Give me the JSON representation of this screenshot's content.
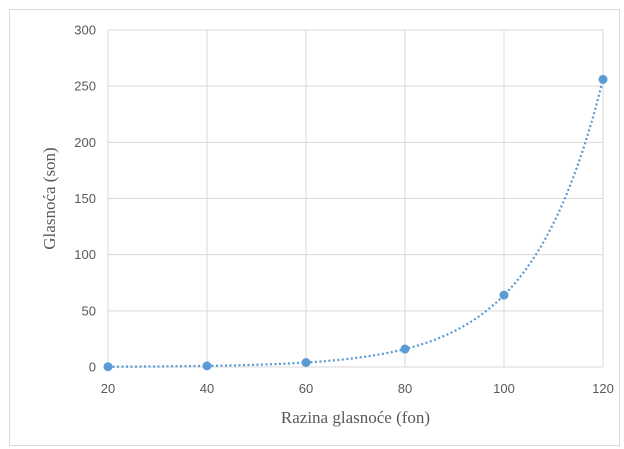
{
  "chart_data": {
    "type": "scatter",
    "title": "",
    "xlabel": "Razina  glasnoće  (fon)",
    "ylabel": "Glasnoća  (son)",
    "x": [
      20,
      40,
      60,
      80,
      100,
      120
    ],
    "y": [
      0.25,
      1,
      4,
      16,
      64,
      256
    ],
    "xlim": [
      20,
      120
    ],
    "ylim": [
      0,
      300
    ],
    "xticks": [
      "20",
      "40",
      "60",
      "80",
      "100",
      "120"
    ],
    "yticks": [
      "0",
      "50",
      "100",
      "150",
      "200",
      "250",
      "300"
    ],
    "grid": true,
    "trendline": "exponential, dotted",
    "legend": "none",
    "series_color": "#5b9bd5"
  }
}
